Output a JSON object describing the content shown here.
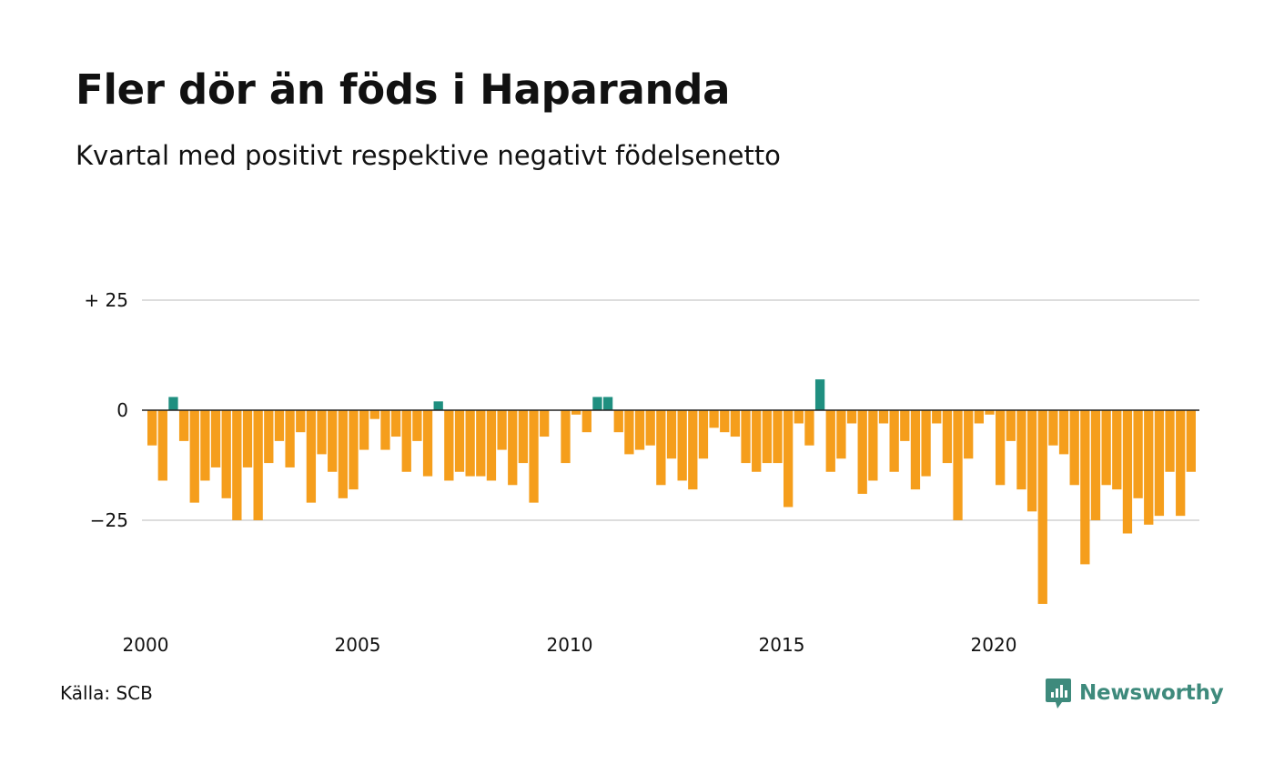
{
  "chart_data": {
    "type": "bar",
    "title": "Fler dör än föds i Haparanda",
    "subtitle": "Kvartal med positivt respektive negativt födelsenetto",
    "xlabel": "",
    "ylabel": "",
    "ylim": [
      -43,
      25
    ],
    "y_ticks": [
      {
        "value": 25,
        "label": "+ 25"
      },
      {
        "value": 0,
        "label": "0"
      },
      {
        "value": -25,
        "label": "−25"
      }
    ],
    "x_ticks": [
      "2000",
      "2005",
      "2010",
      "2015",
      "2020"
    ],
    "grid": true,
    "legend": "none",
    "colors": {
      "positive": "#1f8f80",
      "negative": "#f59e1c",
      "grid": "#dddddd",
      "zero_line": "#222222"
    },
    "values": [
      -8,
      -16,
      3,
      -7,
      -21,
      -16,
      -13,
      -20,
      -25,
      -13,
      -25,
      -12,
      -7,
      -13,
      -5,
      -21,
      -10,
      -14,
      -20,
      -18,
      -9,
      -2,
      -9,
      -6,
      -14,
      -7,
      -15,
      2,
      -16,
      -14,
      -15,
      -15,
      -16,
      -9,
      -17,
      -12,
      -21,
      -6,
      0,
      -12,
      -1,
      -5,
      3,
      3,
      -5,
      -10,
      -9,
      -8,
      -17,
      -11,
      -16,
      -18,
      -11,
      -4,
      -5,
      -6,
      -12,
      -14,
      -12,
      -12,
      -22,
      -3,
      -8,
      7,
      -14,
      -11,
      -3,
      -19,
      -16,
      -3,
      -14,
      -7,
      -18,
      -15,
      -3,
      -12,
      -25,
      -11,
      -3,
      -1,
      -17,
      -7,
      -18,
      -23,
      -44,
      -8,
      -10,
      -17,
      -35,
      -25,
      -17,
      -18,
      -28,
      -20,
      -26,
      -24,
      -14,
      -24,
      -14
    ]
  },
  "footer": {
    "source": "Källa: SCB",
    "brand": "Newsworthy"
  },
  "icons": {
    "logo": "newsworthy-logo-icon"
  }
}
